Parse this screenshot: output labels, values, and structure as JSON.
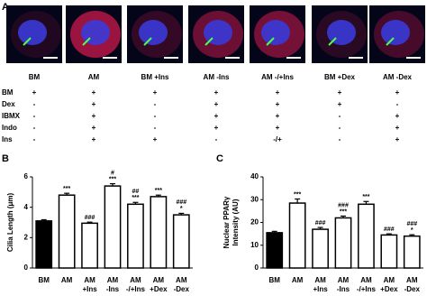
{
  "panel_a": {
    "panel_label": "A",
    "labels": [
      "BM",
      "AM",
      "BM +Ins",
      "AM -Ins",
      "AM -/+Ins",
      "BM +Dex",
      "AM -Dex"
    ]
  },
  "table": {
    "row_labels": [
      "BM",
      "Dex",
      "IBMX",
      "Indo",
      "Ins"
    ],
    "rows": [
      [
        "+",
        "+",
        "+",
        "+",
        "+",
        "+",
        "+"
      ],
      [
        "-",
        "+",
        "-",
        "+",
        "+",
        "+",
        "-"
      ],
      [
        "-",
        "+",
        "-",
        "+",
        "+",
        "-",
        "+"
      ],
      [
        "-",
        "+",
        "-",
        "+",
        "+",
        "-",
        "+"
      ],
      [
        "-",
        "+",
        "+",
        "-",
        "-/+",
        "-",
        "+"
      ]
    ]
  },
  "chart_data": [
    {
      "type": "bar",
      "panel_label": "B",
      "ylabel": [
        "Cilia Length (μm)"
      ],
      "categories": [
        [
          "BM"
        ],
        [
          "AM"
        ],
        [
          "AM",
          "+Ins"
        ],
        [
          "AM",
          "-Ins"
        ],
        [
          "AM",
          "-/+Ins"
        ],
        [
          "AM",
          "+Dex"
        ],
        [
          "AM",
          "-Dex"
        ]
      ],
      "values": [
        3.1,
        4.8,
        2.95,
        5.4,
        4.2,
        4.7,
        3.5
      ],
      "errors": [
        0.08,
        0.12,
        0.07,
        0.15,
        0.12,
        0.1,
        0.1
      ],
      "annotations": [
        null,
        [
          "***"
        ],
        [
          "###"
        ],
        [
          "#",
          "***"
        ],
        [
          "##",
          "***"
        ],
        [
          "***"
        ],
        [
          "###",
          "*"
        ]
      ],
      "colors": [
        "#000000",
        "#ffffff",
        "#ffffff",
        "#ffffff",
        "#ffffff",
        "#ffffff",
        "#ffffff"
      ],
      "ylim": [
        0,
        6
      ],
      "yticks": [
        0,
        2,
        4,
        6
      ]
    },
    {
      "type": "bar",
      "panel_label": "C",
      "ylabel": [
        "Nuclear PPARγ",
        "Intensity (AU)"
      ],
      "categories": [
        [
          "BM"
        ],
        [
          "AM"
        ],
        [
          "AM",
          "+Ins"
        ],
        [
          "AM",
          "-Ins"
        ],
        [
          "AM",
          "-/+Ins"
        ],
        [
          "AM",
          "+Dex"
        ],
        [
          "AM",
          "-Dex"
        ]
      ],
      "values": [
        15.5,
        28.5,
        17,
        22,
        28,
        14.5,
        14
      ],
      "errors": [
        0.6,
        1.8,
        0.8,
        0.8,
        1.2,
        0.5,
        0.6
      ],
      "annotations": [
        null,
        [
          "***"
        ],
        [
          "###"
        ],
        [
          "###",
          "***"
        ],
        [
          "***"
        ],
        [
          "###"
        ],
        [
          "###",
          "*"
        ]
      ],
      "colors": [
        "#000000",
        "#ffffff",
        "#ffffff",
        "#ffffff",
        "#ffffff",
        "#ffffff",
        "#ffffff"
      ],
      "ylim": [
        0,
        40
      ],
      "yticks": [
        0,
        10,
        20,
        30,
        40
      ]
    }
  ]
}
